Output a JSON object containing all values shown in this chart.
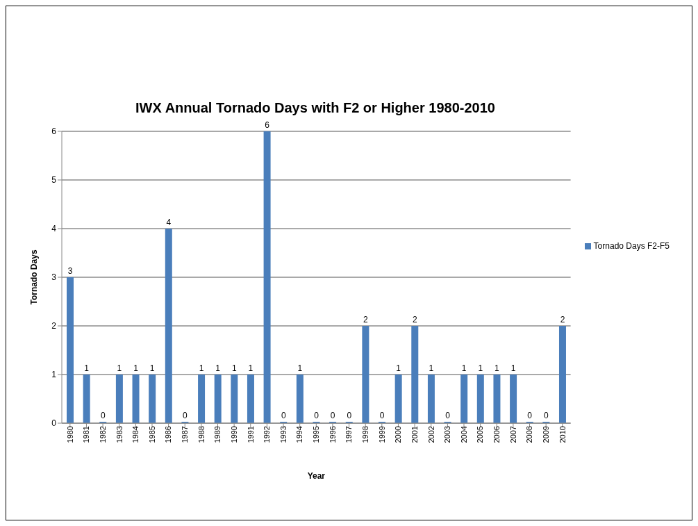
{
  "chart_data": {
    "type": "bar",
    "title": "IWX Annual Tornado Days with F2 or Higher 1980-2010",
    "xlabel": "Year",
    "ylabel": "Tornado Days",
    "categories": [
      "1980",
      "1981",
      "1982",
      "1983",
      "1984",
      "1985",
      "1986",
      "1987",
      "1988",
      "1989",
      "1990",
      "1991",
      "1992",
      "1993",
      "1994",
      "1995",
      "1996",
      "1997",
      "1998",
      "1999",
      "2000",
      "2001",
      "2002",
      "2003",
      "2004",
      "2005",
      "2006",
      "2007",
      "2008",
      "2009",
      "2010"
    ],
    "series": [
      {
        "name": "Tornado Days F2-F5",
        "color": "#4a7ebb",
        "values": [
          3,
          1,
          0,
          1,
          1,
          1,
          4,
          0,
          1,
          1,
          1,
          1,
          6,
          0,
          1,
          0,
          0,
          0,
          2,
          0,
          1,
          2,
          1,
          0,
          1,
          1,
          1,
          1,
          0,
          0,
          2
        ]
      }
    ],
    "ylim": [
      0,
      6
    ],
    "yticks": [
      0,
      1,
      2,
      3,
      4,
      5,
      6
    ],
    "grid": "y",
    "legend": "right",
    "data_labels": true
  }
}
